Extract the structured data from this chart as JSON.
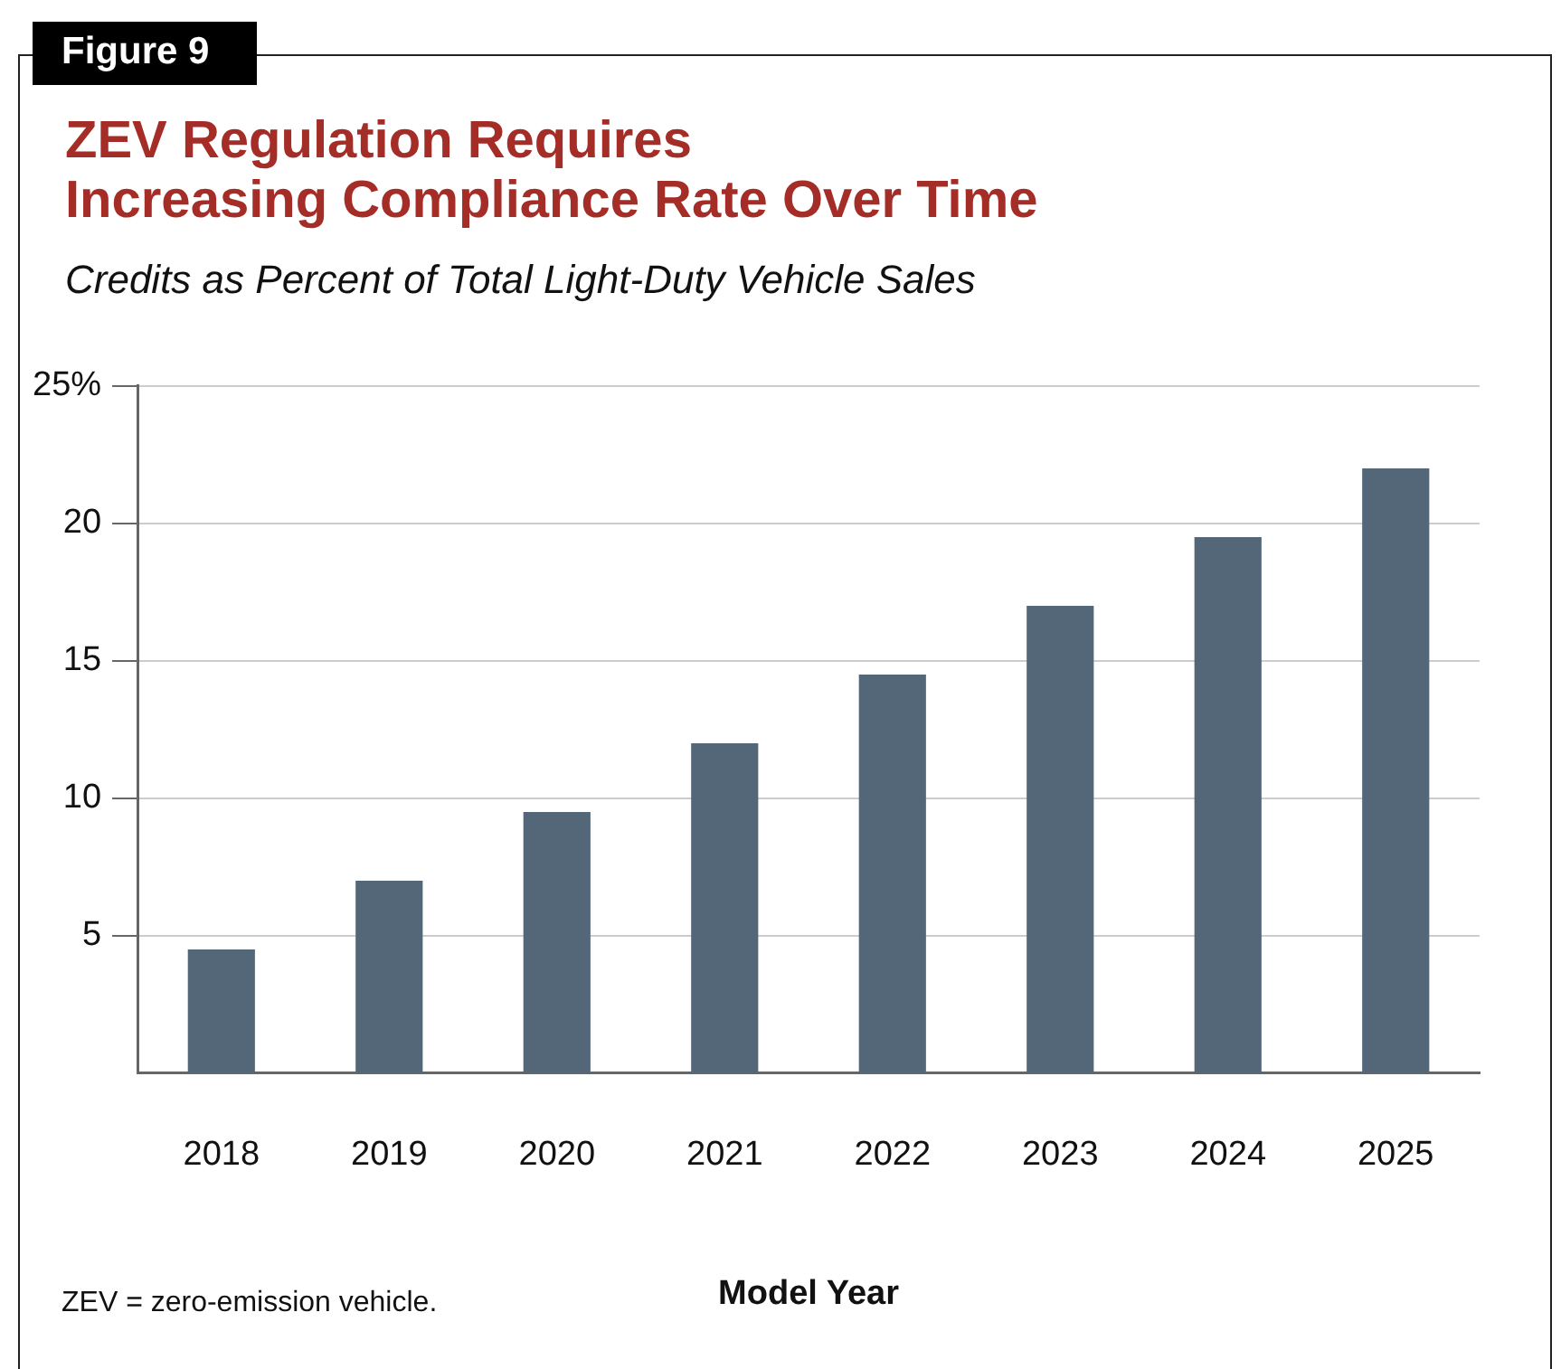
{
  "chart_data": {
    "type": "bar",
    "title": "ZEV Regulation Requires\nIncreasing Compliance Rate Over Time",
    "subtitle": "Credits as Percent of Total Light-Duty Vehicle Sales",
    "xlabel": "Model Year",
    "annotations": [
      "Figure 9",
      "ZEV = zero-emission vehicle."
    ],
    "categories": [
      "2018",
      "2019",
      "2020",
      "2021",
      "2022",
      "2023",
      "2024",
      "2025"
    ],
    "values": [
      4.5,
      7,
      9.5,
      12,
      14.5,
      17,
      19.5,
      22
    ],
    "color": "#546778",
    "ylim": [
      0,
      25
    ],
    "yticks": [
      5,
      10,
      15,
      20,
      {
        "value": 25,
        "label": "25%"
      }
    ],
    "grid": "y",
    "legend": false
  }
}
